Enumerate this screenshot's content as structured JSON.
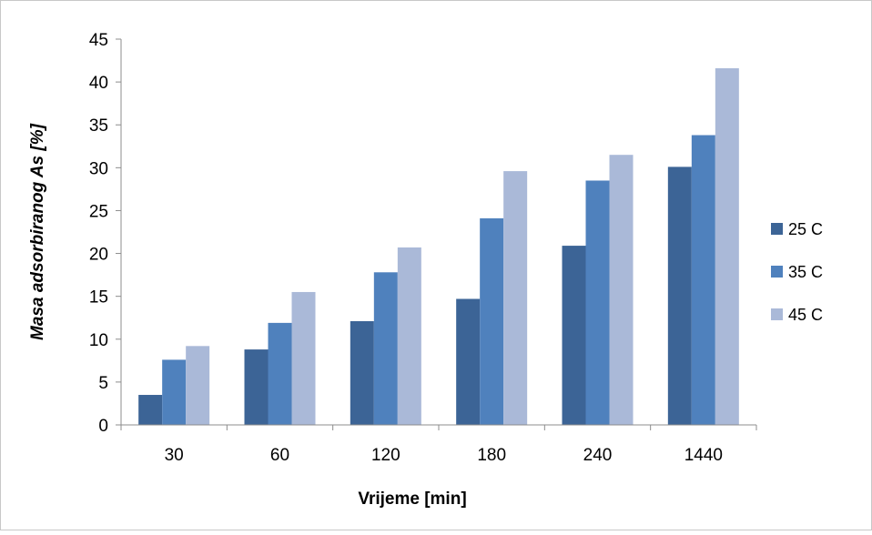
{
  "chart_data": {
    "type": "bar",
    "title": "",
    "xlabel": "Vrijeme [min]",
    "ylabel": "Masa adsorbiranog As [%]",
    "categories": [
      "30",
      "60",
      "120",
      "180",
      "240",
      "1440"
    ],
    "series": [
      {
        "name": "25 C",
        "color": "#3c6496",
        "values": [
          3.5,
          8.8,
          12.1,
          14.7,
          20.9,
          30.1
        ]
      },
      {
        "name": "35 C",
        "color": "#4f81bd",
        "values": [
          7.6,
          11.9,
          17.8,
          24.1,
          28.5,
          33.8
        ]
      },
      {
        "name": "45 C",
        "color": "#aab9d8",
        "values": [
          9.2,
          15.5,
          20.7,
          29.6,
          31.5,
          41.6
        ]
      }
    ],
    "ylim": [
      0,
      45
    ],
    "yticks": [
      "0",
      "5",
      "10",
      "15",
      "20",
      "25",
      "30",
      "35",
      "40",
      "45"
    ],
    "ytick_values": [
      0,
      5,
      10,
      15,
      20,
      25,
      30,
      35,
      40,
      45
    ],
    "grid": false,
    "legend_position": "right"
  }
}
